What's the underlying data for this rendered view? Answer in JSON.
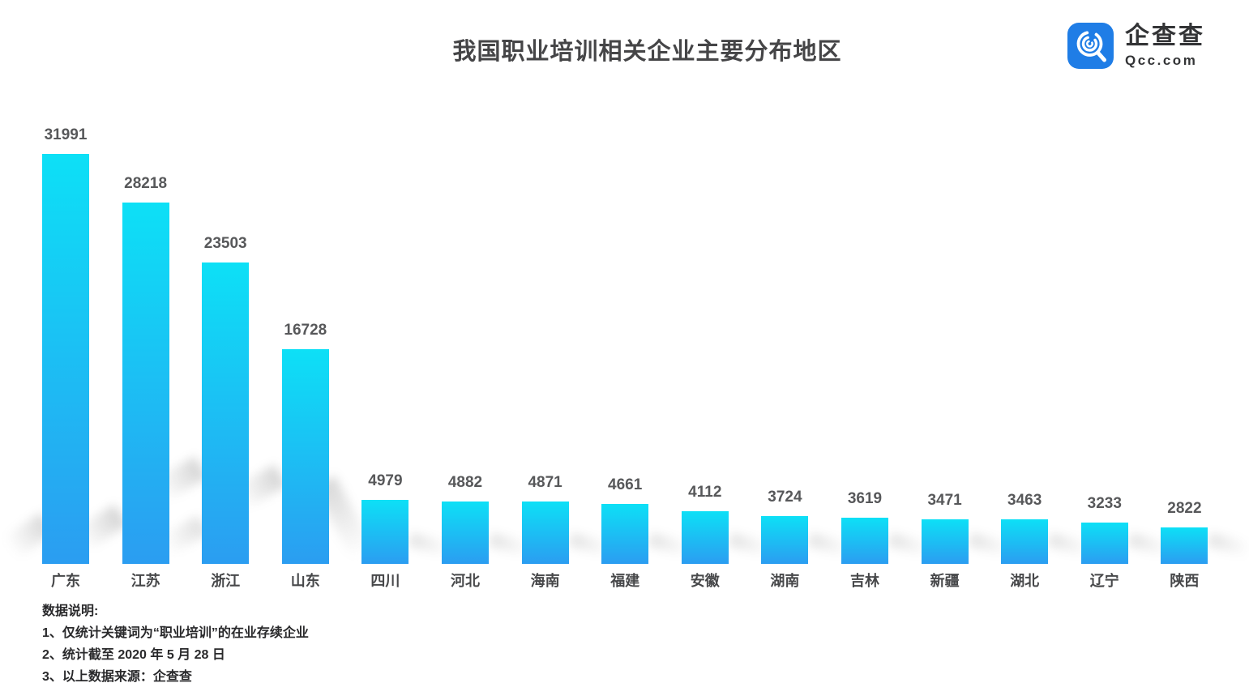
{
  "title": "我国职业培训相关企业主要分布地区",
  "logo": {
    "brand_cn": "企查查",
    "brand_domain": "Qcc.com",
    "brand_color": "#1f7de6",
    "icon": "qcc-magnifier-icon"
  },
  "chart_data": {
    "type": "bar",
    "title": "我国职业培训相关企业主要分布地区",
    "categories": [
      "广东",
      "江苏",
      "浙江",
      "山东",
      "四川",
      "河北",
      "海南",
      "福建",
      "安徽",
      "湖南",
      "吉林",
      "新疆",
      "湖北",
      "辽宁",
      "陕西"
    ],
    "values": [
      31991,
      28218,
      23503,
      16728,
      4979,
      4882,
      4871,
      4661,
      4112,
      3724,
      3619,
      3471,
      3463,
      3233,
      2822
    ],
    "xlabel": "",
    "ylabel": "",
    "ylim": [
      0,
      32000
    ],
    "grid": false,
    "axis_lines": false,
    "legend_position": "none",
    "value_labels_shown": true,
    "bar_gradient_top": "#0de0f6",
    "bar_gradient_bottom": "#2b9df1",
    "value_label_color": "#57585a",
    "category_label_color": "#47484a",
    "shadow_color": "#bfbfbf"
  },
  "footnotes": {
    "heading": "数据说明:",
    "items": [
      "1、仅统计关键词为“职业培训”的在业存续企业",
      "2、统计截至 2020 年 5 月 28 日",
      "3、以上数据来源：企查查"
    ]
  }
}
